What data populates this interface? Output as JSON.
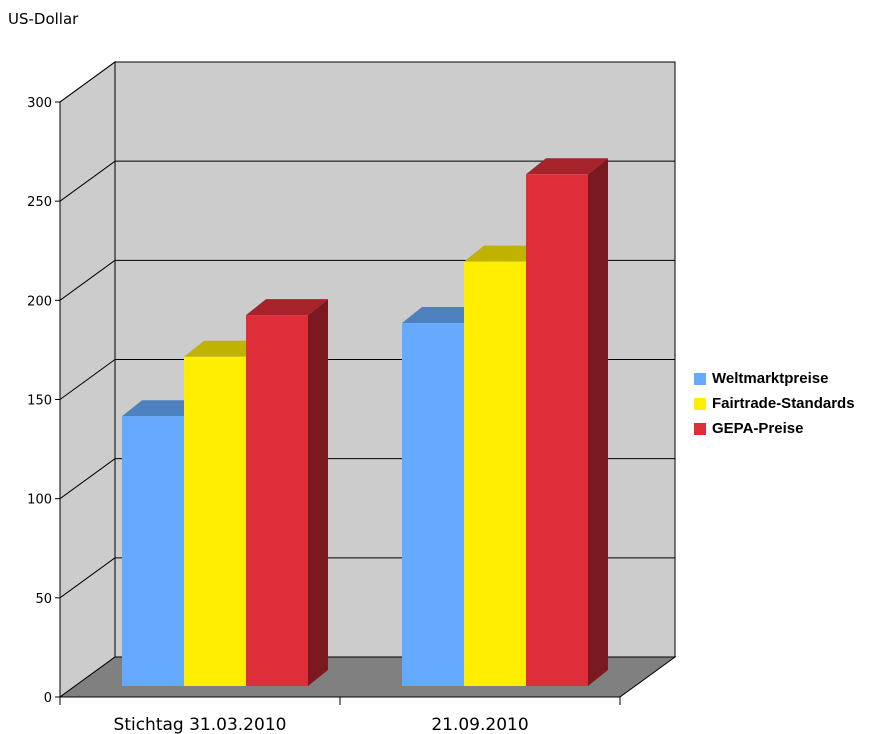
{
  "chart_data": {
    "type": "bar",
    "ylabel": "US-Dollar",
    "categories": [
      "Stichtag 31.03.2010",
      "21.09.2010"
    ],
    "series": [
      {
        "name": "Weltmarktpreise",
        "values": [
          136,
          183
        ],
        "color": "#66aaff"
      },
      {
        "name": "Fairtrade-Standards",
        "values": [
          166,
          214
        ],
        "color": "#ffee00"
      },
      {
        "name": "GEPA-Preise",
        "values": [
          187,
          258
        ],
        "color": "#dd2e3a"
      }
    ],
    "ylim": [
      0,
      300
    ],
    "yticks": [
      0,
      50,
      100,
      150,
      200,
      250,
      300
    ],
    "grid": true,
    "style": "3d",
    "legend_position": "right"
  }
}
